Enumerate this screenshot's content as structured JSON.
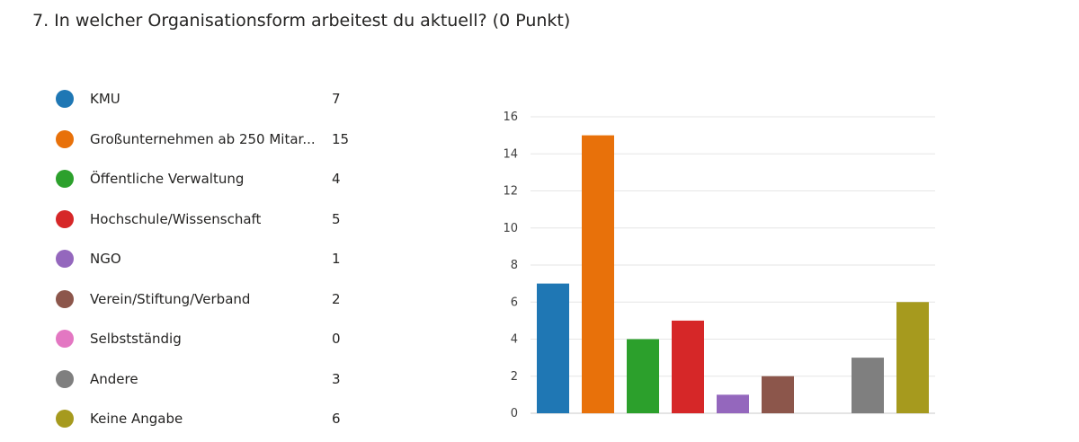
{
  "question": {
    "title": "7.  In welcher Organisationsform arbeitest du aktuell? (0 Punkt)"
  },
  "legend": [
    {
      "label": "KMU",
      "count": "7",
      "color": "#1f77b4"
    },
    {
      "label": "Großunternehmen ab 250 Mitar...",
      "count": "15",
      "color": "#e8710a"
    },
    {
      "label": "Öffentliche Verwaltung",
      "count": "4",
      "color": "#2ca02c"
    },
    {
      "label": "Hochschule/Wissenschaft",
      "count": "5",
      "color": "#d62728"
    },
    {
      "label": "NGO",
      "count": "1",
      "color": "#9467bd"
    },
    {
      "label": "Verein/Stiftung/Verband",
      "count": "2",
      "color": "#8c564b"
    },
    {
      "label": "Selbstständig",
      "count": "0",
      "color": "#e377c2"
    },
    {
      "label": "Andere",
      "count": "3",
      "color": "#7f7f7f"
    },
    {
      "label": "Keine Angabe",
      "count": "6",
      "color": "#a69a1e"
    }
  ],
  "chart_data": {
    "type": "bar",
    "categories": [
      "KMU",
      "Großunternehmen ab 250 Mitar...",
      "Öffentliche Verwaltung",
      "Hochschule/Wissenschaft",
      "NGO",
      "Verein/Stiftung/Verband",
      "Selbstständig",
      "Andere",
      "Keine Angabe"
    ],
    "values": [
      7,
      15,
      4,
      5,
      1,
      2,
      0,
      3,
      6
    ],
    "colors": [
      "#1f77b4",
      "#e8710a",
      "#2ca02c",
      "#d62728",
      "#9467bd",
      "#8c564b",
      "#e377c2",
      "#7f7f7f",
      "#a69a1e"
    ],
    "yticks": [
      "0",
      "2",
      "4",
      "6",
      "8",
      "10",
      "12",
      "14",
      "16"
    ],
    "ylim": [
      0,
      16
    ],
    "grid": true,
    "legend_placement": "left"
  }
}
